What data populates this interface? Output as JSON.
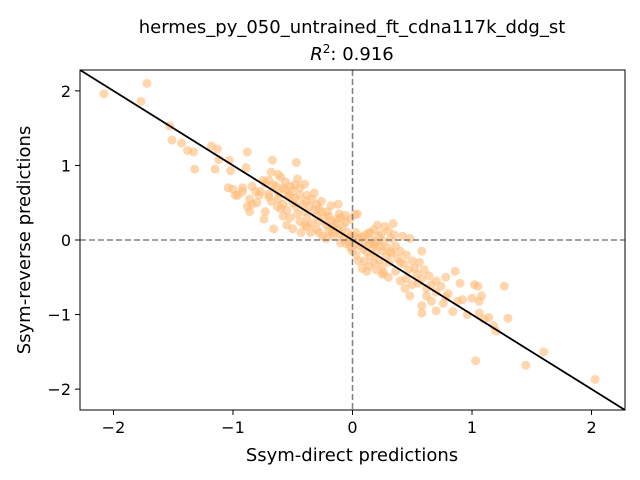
{
  "chart_data": {
    "type": "scatter",
    "title": "hermes_py_050_untrained_ft_cdna117k_ddg_st",
    "subtitle_prefix": "R",
    "subtitle_sup": "2",
    "subtitle_rest": ": 0.916",
    "xlabel": "Ssym-direct predictions",
    "ylabel": "Ssym-reverse predictions",
    "xlim": [
      -2.28,
      2.28
    ],
    "ylim": [
      -2.28,
      2.28
    ],
    "xticks": [
      -2,
      -1,
      0,
      1,
      2
    ],
    "yticks": [
      -2,
      -1,
      0,
      1,
      2
    ],
    "xtick_labels": [
      "−2",
      "−1",
      "0",
      "1",
      "2"
    ],
    "ytick_labels": [
      "−2",
      "−1",
      "0",
      "1",
      "2"
    ],
    "grid": false,
    "point_color": "#ffbb78",
    "line_color": "#000000",
    "refline_color": "#808080",
    "fit_line": {
      "slope": -1,
      "intercept": 0
    },
    "points": [
      [
        -2.08,
        1.96
      ],
      [
        -1.72,
        2.1
      ],
      [
        -1.77,
        1.86
      ],
      [
        -1.53,
        1.53
      ],
      [
        -1.51,
        1.34
      ],
      [
        -1.43,
        1.3
      ],
      [
        -1.38,
        1.2
      ],
      [
        -1.33,
        1.18
      ],
      [
        -1.32,
        0.95
      ],
      [
        -1.18,
        1.26
      ],
      [
        -1.13,
        1.22
      ],
      [
        -1.12,
        1.08
      ],
      [
        -1.15,
        0.95
      ],
      [
        -1.03,
        1.07
      ],
      [
        -0.88,
        1.18
      ],
      [
        -0.89,
        0.97
      ],
      [
        -0.67,
        1.07
      ],
      [
        -0.47,
        1.04
      ],
      [
        -0.68,
        0.91
      ],
      [
        -0.62,
        0.88
      ],
      [
        -1.02,
        0.93
      ],
      [
        -1.04,
        0.7
      ],
      [
        -1.0,
        0.68
      ],
      [
        -0.92,
        0.65
      ],
      [
        -0.96,
        0.6
      ],
      [
        -0.84,
        0.72
      ],
      [
        -0.81,
        0.65
      ],
      [
        -0.86,
        0.55
      ],
      [
        -0.77,
        0.65
      ],
      [
        -0.75,
        0.8
      ],
      [
        -0.73,
        0.76
      ],
      [
        -0.7,
        0.62
      ],
      [
        -0.66,
        0.74
      ],
      [
        -0.6,
        0.84
      ],
      [
        -0.57,
        0.68
      ],
      [
        -0.56,
        0.78
      ],
      [
        -0.54,
        0.6
      ],
      [
        -0.52,
        0.72
      ],
      [
        -0.5,
        0.66
      ],
      [
        -0.48,
        0.56
      ],
      [
        -0.62,
        0.55
      ],
      [
        -0.63,
        0.45
      ],
      [
        -0.8,
        0.5
      ],
      [
        -0.86,
        0.38
      ],
      [
        -0.73,
        0.38
      ],
      [
        -0.68,
        0.52
      ],
      [
        -0.58,
        0.48
      ],
      [
        -0.55,
        0.4
      ],
      [
        -0.5,
        0.5
      ],
      [
        -0.47,
        0.45
      ],
      [
        -0.46,
        0.35
      ],
      [
        -0.44,
        0.6
      ],
      [
        -0.42,
        0.48
      ],
      [
        -0.4,
        0.38
      ],
      [
        -0.38,
        0.3
      ],
      [
        -0.36,
        0.45
      ],
      [
        -0.34,
        0.55
      ],
      [
        -0.32,
        0.4
      ],
      [
        -0.3,
        0.32
      ],
      [
        -0.28,
        0.25
      ],
      [
        -0.26,
        0.38
      ],
      [
        -0.24,
        0.3
      ],
      [
        -0.22,
        0.2
      ],
      [
        -0.2,
        0.32
      ],
      [
        -0.18,
        0.26
      ],
      [
        -0.16,
        0.18
      ],
      [
        -0.14,
        0.22
      ],
      [
        -0.12,
        0.14
      ],
      [
        -0.1,
        0.08
      ],
      [
        -0.08,
        0.18
      ],
      [
        -0.06,
        0.24
      ],
      [
        -0.04,
        0.1
      ],
      [
        -0.02,
        0.04
      ],
      [
        -0.38,
        0.18
      ],
      [
        -0.43,
        0.1
      ],
      [
        -0.3,
        0.14
      ],
      [
        -0.25,
        0.05
      ],
      [
        -0.22,
        0.02
      ],
      [
        -0.17,
        0.1
      ],
      [
        -0.34,
        0.22
      ],
      [
        -0.28,
        0.42
      ],
      [
        -0.44,
        0.25
      ],
      [
        -0.52,
        0.3
      ],
      [
        -0.39,
        0.52
      ],
      [
        -0.3,
        0.48
      ],
      [
        -0.11,
        0.35
      ],
      [
        -0.1,
        0.3
      ],
      [
        -0.06,
        0.33
      ],
      [
        -0.02,
        0.28
      ],
      [
        0.02,
        0.34
      ],
      [
        -0.08,
        0.02
      ],
      [
        -0.03,
        -0.02
      ],
      [
        0.01,
        0.05
      ],
      [
        -0.66,
        0.15
      ],
      [
        -0.74,
        0.28
      ],
      [
        -0.88,
        0.45
      ],
      [
        -0.5,
        0.15
      ],
      [
        -0.53,
        0.6
      ],
      [
        -0.48,
        0.74
      ],
      [
        -0.46,
        0.82
      ],
      [
        -0.38,
        0.6
      ],
      [
        -0.32,
        0.63
      ],
      [
        -0.28,
        0.1
      ],
      [
        -0.21,
        0.38
      ],
      [
        -0.18,
        0.46
      ],
      [
        -0.16,
        0.05
      ],
      [
        -0.13,
        0.28
      ],
      [
        -0.05,
        -0.05
      ],
      [
        0.0,
        0.0
      ],
      [
        0.02,
        -0.06
      ],
      [
        0.03,
        0.1
      ],
      [
        0.05,
        0.02
      ],
      [
        0.06,
        -0.08
      ],
      [
        0.08,
        0.04
      ],
      [
        0.09,
        -0.12
      ],
      [
        0.1,
        0.06
      ],
      [
        0.11,
        -0.02
      ],
      [
        0.12,
        -0.16
      ],
      [
        0.13,
        0.09
      ],
      [
        0.14,
        -0.05
      ],
      [
        0.15,
        -0.22
      ],
      [
        0.16,
        0.0
      ],
      [
        0.17,
        -0.1
      ],
      [
        0.18,
        0.14
      ],
      [
        0.19,
        -0.18
      ],
      [
        0.2,
        -0.03
      ],
      [
        0.21,
        0.2
      ],
      [
        0.22,
        -0.27
      ],
      [
        0.23,
        -0.08
      ],
      [
        0.24,
        0.08
      ],
      [
        0.25,
        -0.14
      ],
      [
        0.26,
        -0.02
      ],
      [
        0.27,
        0.18
      ],
      [
        0.28,
        -0.22
      ],
      [
        0.29,
        -0.1
      ],
      [
        0.3,
        0.12
      ],
      [
        0.31,
        -0.3
      ],
      [
        0.32,
        0.02
      ],
      [
        0.33,
        -0.18
      ],
      [
        0.34,
        0.22
      ],
      [
        0.36,
        -0.08
      ],
      [
        0.38,
        -0.25
      ],
      [
        0.4,
        -0.15
      ],
      [
        0.42,
        0.05
      ],
      [
        0.43,
        -0.32
      ],
      [
        0.45,
        -0.2
      ],
      [
        0.47,
        -0.4
      ],
      [
        0.5,
        -0.28
      ],
      [
        0.52,
        -0.38
      ],
      [
        0.54,
        -0.46
      ],
      [
        0.56,
        -0.3
      ],
      [
        0.58,
        -0.52
      ],
      [
        0.6,
        -0.4
      ],
      [
        0.64,
        -0.48
      ],
      [
        0.66,
        -0.6
      ],
      [
        0.7,
        -0.55
      ],
      [
        0.74,
        -0.62
      ],
      [
        0.78,
        -0.5
      ],
      [
        0.86,
        -0.42
      ],
      [
        0.9,
        -0.58
      ],
      [
        0.8,
        -0.72
      ],
      [
        0.76,
        -0.85
      ],
      [
        0.7,
        -0.95
      ],
      [
        0.62,
        -0.75
      ],
      [
        0.5,
        -0.6
      ],
      [
        0.48,
        -0.75
      ],
      [
        0.4,
        -0.55
      ],
      [
        0.36,
        -0.42
      ],
      [
        0.3,
        -0.5
      ],
      [
        0.25,
        -0.35
      ],
      [
        0.14,
        -0.35
      ],
      [
        0.1,
        -0.28
      ],
      [
        0.08,
        -0.38
      ],
      [
        0.05,
        -0.28
      ],
      [
        0.03,
        -0.2
      ],
      [
        0.0,
        -0.15
      ],
      [
        -0.02,
        -0.1
      ],
      [
        0.04,
        0.35
      ],
      [
        0.35,
        0.07
      ],
      [
        0.48,
        0.02
      ],
      [
        0.58,
        -0.15
      ],
      [
        0.55,
        -0.58
      ],
      [
        0.66,
        -0.82
      ],
      [
        0.58,
        -0.98
      ],
      [
        0.58,
        -0.88
      ],
      [
        0.84,
        -0.96
      ],
      [
        0.88,
        -0.82
      ],
      [
        0.7,
        -0.7
      ],
      [
        0.78,
        -0.76
      ],
      [
        0.92,
        -0.8
      ],
      [
        0.96,
        -1.0
      ],
      [
        1.0,
        -0.78
      ],
      [
        1.06,
        -0.98
      ],
      [
        1.1,
        -1.06
      ],
      [
        1.06,
        -0.82
      ],
      [
        1.02,
        -0.6
      ],
      [
        1.05,
        -0.62
      ],
      [
        1.08,
        -0.75
      ],
      [
        1.14,
        -1.04
      ],
      [
        1.18,
        -1.15
      ],
      [
        1.2,
        -1.22
      ],
      [
        1.27,
        -0.62
      ],
      [
        1.3,
        -1.05
      ],
      [
        1.03,
        -1.62
      ],
      [
        1.45,
        -1.68
      ],
      [
        1.6,
        -1.5
      ],
      [
        2.03,
        -1.87
      ],
      [
        0.44,
        -0.65
      ],
      [
        0.62,
        -0.65
      ],
      [
        0.25,
        -0.46
      ],
      [
        0.2,
        -0.4
      ],
      [
        0.18,
        -0.3
      ],
      [
        0.12,
        -0.42
      ],
      [
        0.4,
        -0.3
      ],
      [
        0.32,
        -0.16
      ],
      [
        0.22,
        0.05
      ],
      [
        0.15,
        0.1
      ],
      [
        0.26,
        -0.44
      ],
      [
        0.45,
        -0.52
      ],
      [
        0.18,
        -0.06
      ],
      [
        -0.1,
        -0.04
      ],
      [
        -0.2,
        0.12
      ],
      [
        -0.4,
        0.2
      ],
      [
        -0.58,
        0.32
      ],
      [
        -0.62,
        0.63
      ],
      [
        -0.7,
        0.58
      ],
      [
        -0.78,
        0.6
      ],
      [
        -0.84,
        0.48
      ],
      [
        -0.6,
        0.42
      ],
      [
        -0.55,
        0.2
      ],
      [
        -0.35,
        0.1
      ],
      [
        -0.26,
        0.52
      ],
      [
        -0.12,
        0.48
      ],
      [
        -0.92,
        0.7
      ],
      [
        -0.98,
        0.6
      ],
      [
        -0.58,
        0.7
      ],
      [
        -0.44,
        0.7
      ],
      [
        -0.4,
        0.75
      ],
      [
        -0.7,
        0.8
      ],
      [
        -0.64,
        0.72
      ]
    ]
  }
}
